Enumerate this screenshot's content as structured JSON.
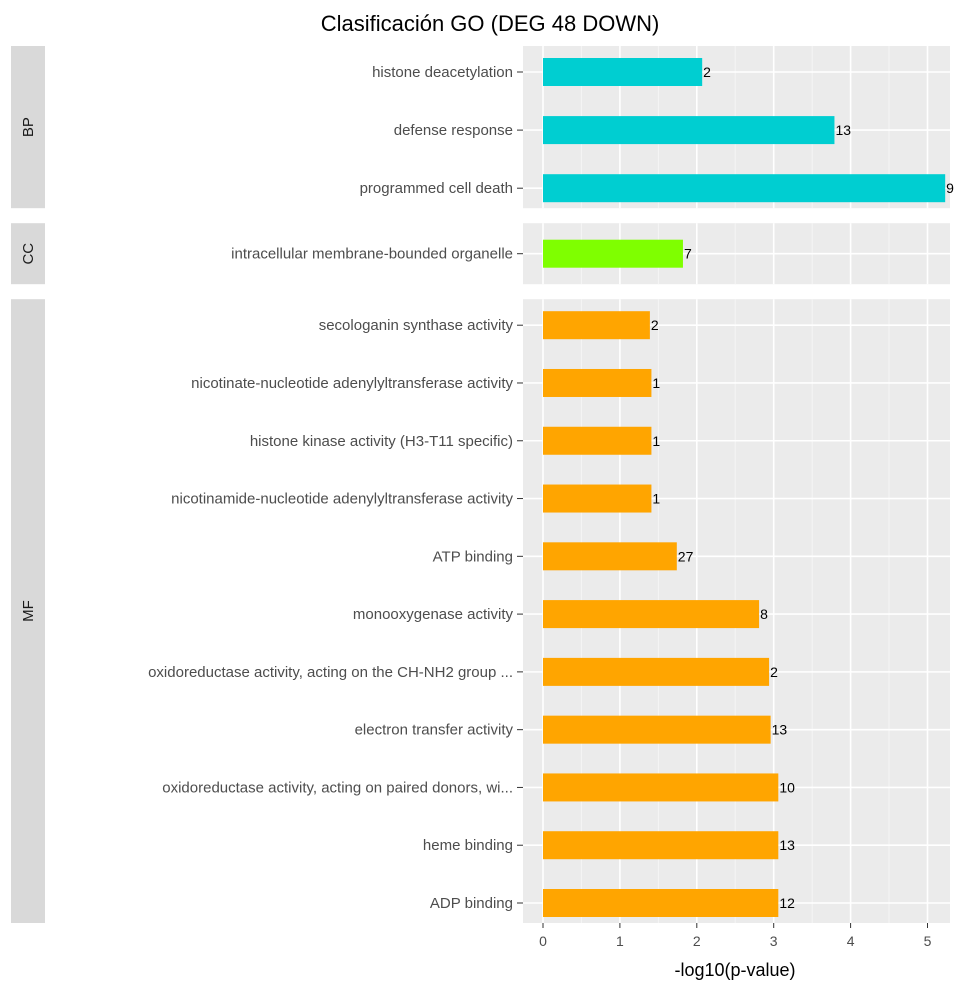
{
  "chart_data": {
    "type": "bar",
    "title": "Clasificación GO (DEG 48 DOWN)",
    "xlabel": "-log10(p-value)",
    "ylabel": "",
    "xlim": [
      0,
      5.3
    ],
    "x_ticks": [
      0,
      1,
      2,
      3,
      4,
      5
    ],
    "grid": true,
    "orientation": "horizontal",
    "colors": {
      "BP": "#00CED1",
      "CC": "#7FFF00",
      "MF": "#FFA500"
    },
    "facets": [
      {
        "name": "BP",
        "bars": [
          {
            "term": "histone deacetylation",
            "value": 2.07,
            "label": "2"
          },
          {
            "term": "defense response",
            "value": 3.79,
            "label": "13"
          },
          {
            "term": "programmed cell death",
            "value": 5.23,
            "label": "9"
          }
        ]
      },
      {
        "name": "CC",
        "bars": [
          {
            "term": "intracellular membrane-bounded organelle",
            "value": 1.82,
            "label": "7"
          }
        ]
      },
      {
        "name": "MF",
        "bars": [
          {
            "term": "secologanin synthase activity",
            "value": 1.39,
            "label": "2"
          },
          {
            "term": "nicotinate-nucleotide adenylyltransferase activity",
            "value": 1.41,
            "label": "1"
          },
          {
            "term": "histone kinase activity (H3-T11 specific)",
            "value": 1.41,
            "label": "1"
          },
          {
            "term": "nicotinamide-nucleotide adenylyltransferase activity",
            "value": 1.41,
            "label": "1"
          },
          {
            "term": "ATP binding",
            "value": 1.74,
            "label": "27"
          },
          {
            "term": "monooxygenase activity",
            "value": 2.81,
            "label": "8"
          },
          {
            "term": "oxidoreductase activity, acting on the CH-NH2 group ...",
            "value": 2.94,
            "label": "2"
          },
          {
            "term": "electron transfer activity",
            "value": 2.96,
            "label": "13"
          },
          {
            "term": "oxidoreductase activity, acting on paired donors, wi...",
            "value": 3.06,
            "label": "10"
          },
          {
            "term": "heme binding",
            "value": 3.06,
            "label": "13"
          },
          {
            "term": "ADP binding",
            "value": 3.06,
            "label": "12"
          }
        ]
      }
    ]
  }
}
